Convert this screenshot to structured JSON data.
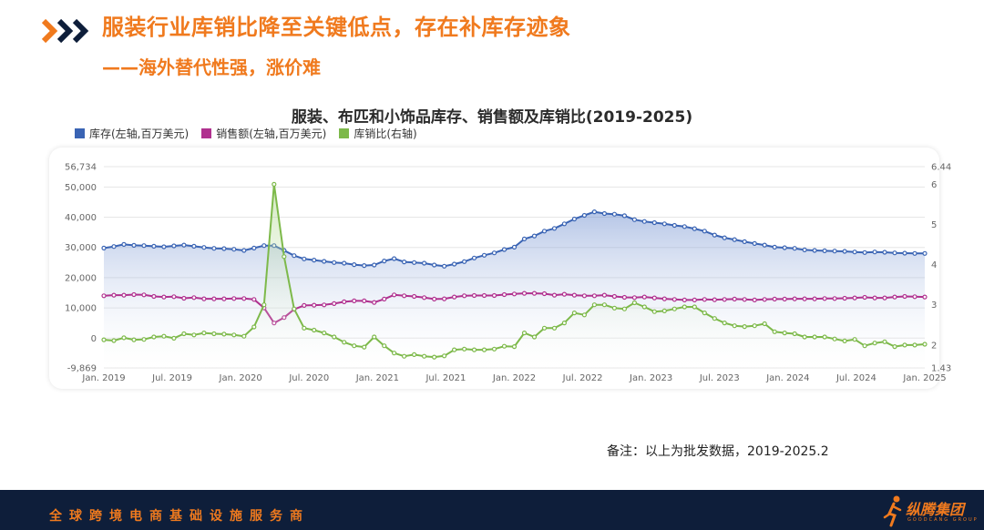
{
  "header": {
    "title": "服装行业库销比降至关键低点，存在补库存迹象",
    "subtitle": "——海外替代性强，涨价难"
  },
  "note": "备注：以上为批发数据，2019-2025.2",
  "footer": {
    "slogan": "全球跨境电商基础设施服务商",
    "logo_text": "纵腾集团",
    "logo_sub": "GOODCANG GROUP"
  },
  "colors": {
    "accent": "#F07A1E",
    "footer_bg": "#0E1E3A",
    "inventory": "#3A64B4",
    "sales": "#B0318F",
    "ratio": "#7DB94A"
  },
  "chart_data": {
    "type": "line",
    "title": "服装、布匹和小饰品库存、销售额及库销比(2019-2025)",
    "legend_position": "top-left",
    "grid": true,
    "x_tick_labels": [
      "Jan. 2019",
      "Jul. 2019",
      "Jan. 2020",
      "Jul. 2020",
      "Jan. 2021",
      "Jul. 2021",
      "Jan. 2022",
      "Jul. 2022",
      "Jan. 2023",
      "Jul. 2023",
      "Jan. 2024",
      "Jul. 2024",
      "Jan. 2025"
    ],
    "y_left": {
      "range": [
        -9869,
        56734
      ],
      "ticks": [
        "-9,869",
        "0",
        "10,000",
        "20,000",
        "30,000",
        "40,000",
        "50,000",
        "56,734"
      ]
    },
    "y_right": {
      "range": [
        1.43,
        6.44
      ],
      "ticks": [
        "1.43",
        "2",
        "3",
        "4",
        "5",
        "6",
        "6.44"
      ]
    },
    "series": [
      {
        "name": "库存(左轴,百万美元)",
        "axis": "left",
        "color": "#3A64B4",
        "area": true,
        "values": [
          29800,
          30300,
          31000,
          30700,
          30600,
          30400,
          30200,
          30500,
          30800,
          30400,
          30000,
          29700,
          29600,
          29400,
          29000,
          29800,
          30600,
          30600,
          29000,
          27300,
          26200,
          25800,
          25400,
          25000,
          24800,
          24300,
          24000,
          24200,
          25500,
          26300,
          25200,
          25000,
          24800,
          24200,
          23800,
          24500,
          25300,
          26500,
          27400,
          28200,
          29300,
          30100,
          32800,
          33800,
          35400,
          36300,
          37800,
          39400,
          40600,
          41800,
          41200,
          41000,
          40500,
          39200,
          38600,
          38200,
          37800,
          37300,
          36900,
          36200,
          35400,
          34100,
          33200,
          32600,
          31900,
          31300,
          30800,
          30100,
          29900,
          29700,
          29200,
          29000,
          28900,
          28800,
          28700,
          28500,
          28300,
          28500,
          28400,
          28200,
          28100,
          28000,
          28000
        ]
      },
      {
        "name": "销售额(左轴,百万美元)",
        "axis": "left",
        "color": "#B0318F",
        "area": false,
        "values": [
          14000,
          14200,
          14200,
          14400,
          14300,
          13800,
          13600,
          13700,
          13200,
          13400,
          13000,
          13000,
          13000,
          13100,
          13100,
          12800,
          10000,
          5000,
          6800,
          9500,
          10800,
          10900,
          11000,
          11400,
          12000,
          12300,
          12300,
          11800,
          12900,
          14300,
          14000,
          13800,
          13400,
          12900,
          13000,
          13600,
          14000,
          14100,
          14100,
          14100,
          14400,
          14600,
          14800,
          14800,
          14700,
          14200,
          14500,
          14200,
          14000,
          14000,
          14200,
          13800,
          13500,
          13400,
          13600,
          13300,
          13000,
          12800,
          12600,
          12600,
          12800,
          12700,
          12800,
          12900,
          12800,
          12600,
          12800,
          12900,
          12900,
          13000,
          13000,
          13000,
          13100,
          13100,
          13200,
          13300,
          13500,
          13300,
          13300,
          13600,
          13800,
          13700,
          13600
        ]
      },
      {
        "name": "库销比(右轴)",
        "axis": "right",
        "color": "#7DB94A",
        "area": true,
        "values": [
          2.13,
          2.11,
          2.18,
          2.13,
          2.14,
          2.2,
          2.22,
          2.17,
          2.28,
          2.25,
          2.3,
          2.28,
          2.27,
          2.25,
          2.22,
          2.45,
          3.0,
          6.0,
          4.2,
          2.9,
          2.42,
          2.37,
          2.3,
          2.2,
          2.07,
          1.98,
          1.95,
          2.2,
          1.98,
          1.8,
          1.72,
          1.76,
          1.72,
          1.7,
          1.73,
          1.88,
          1.9,
          1.88,
          1.88,
          1.9,
          1.97,
          1.96,
          2.3,
          2.2,
          2.42,
          2.42,
          2.55,
          2.8,
          2.75,
          3.0,
          3.0,
          2.92,
          2.9,
          3.05,
          2.95,
          2.83,
          2.85,
          2.9,
          2.95,
          2.95,
          2.8,
          2.66,
          2.55,
          2.48,
          2.46,
          2.48,
          2.53,
          2.33,
          2.3,
          2.28,
          2.2,
          2.2,
          2.2,
          2.15,
          2.1,
          2.14,
          1.98,
          2.05,
          2.08,
          1.96,
          2.0,
          2.0,
          2.02
        ]
      }
    ]
  }
}
